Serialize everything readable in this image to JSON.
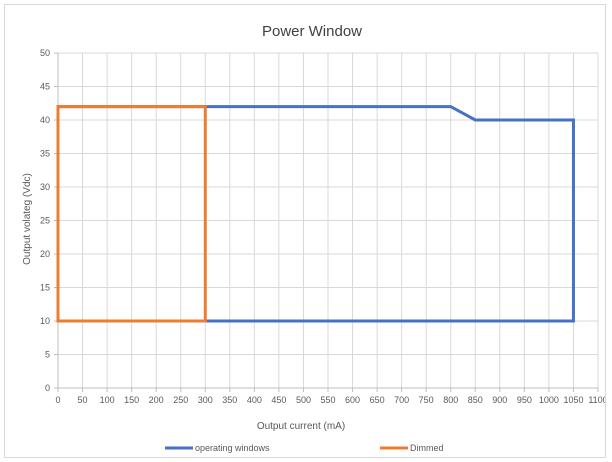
{
  "chart_data": {
    "type": "line",
    "title": "Power Window",
    "xlabel": "Output current (mA)",
    "ylabel": "Output volateg (Vdc)",
    "xlim": [
      0,
      1100
    ],
    "ylim": [
      0,
      50
    ],
    "xticks": [
      0,
      50,
      100,
      150,
      200,
      250,
      300,
      350,
      400,
      450,
      500,
      550,
      600,
      650,
      700,
      750,
      800,
      850,
      900,
      950,
      1000,
      1050,
      1100
    ],
    "yticks": [
      0,
      5,
      10,
      15,
      20,
      25,
      30,
      35,
      40,
      45,
      50
    ],
    "grid": true,
    "legend_position": "bottom",
    "series": [
      {
        "name": "operating windows",
        "color": "#4472c4",
        "points": [
          [
            0,
            10
          ],
          [
            0,
            42
          ],
          [
            800,
            42
          ],
          [
            850,
            40
          ],
          [
            1050,
            40
          ],
          [
            1050,
            10
          ],
          [
            0,
            10
          ]
        ]
      },
      {
        "name": "Dimmed",
        "color": "#ed7d31",
        "points": [
          [
            0,
            10
          ],
          [
            0,
            42
          ],
          [
            300,
            42
          ],
          [
            300,
            10
          ],
          [
            0,
            10
          ]
        ]
      }
    ]
  }
}
